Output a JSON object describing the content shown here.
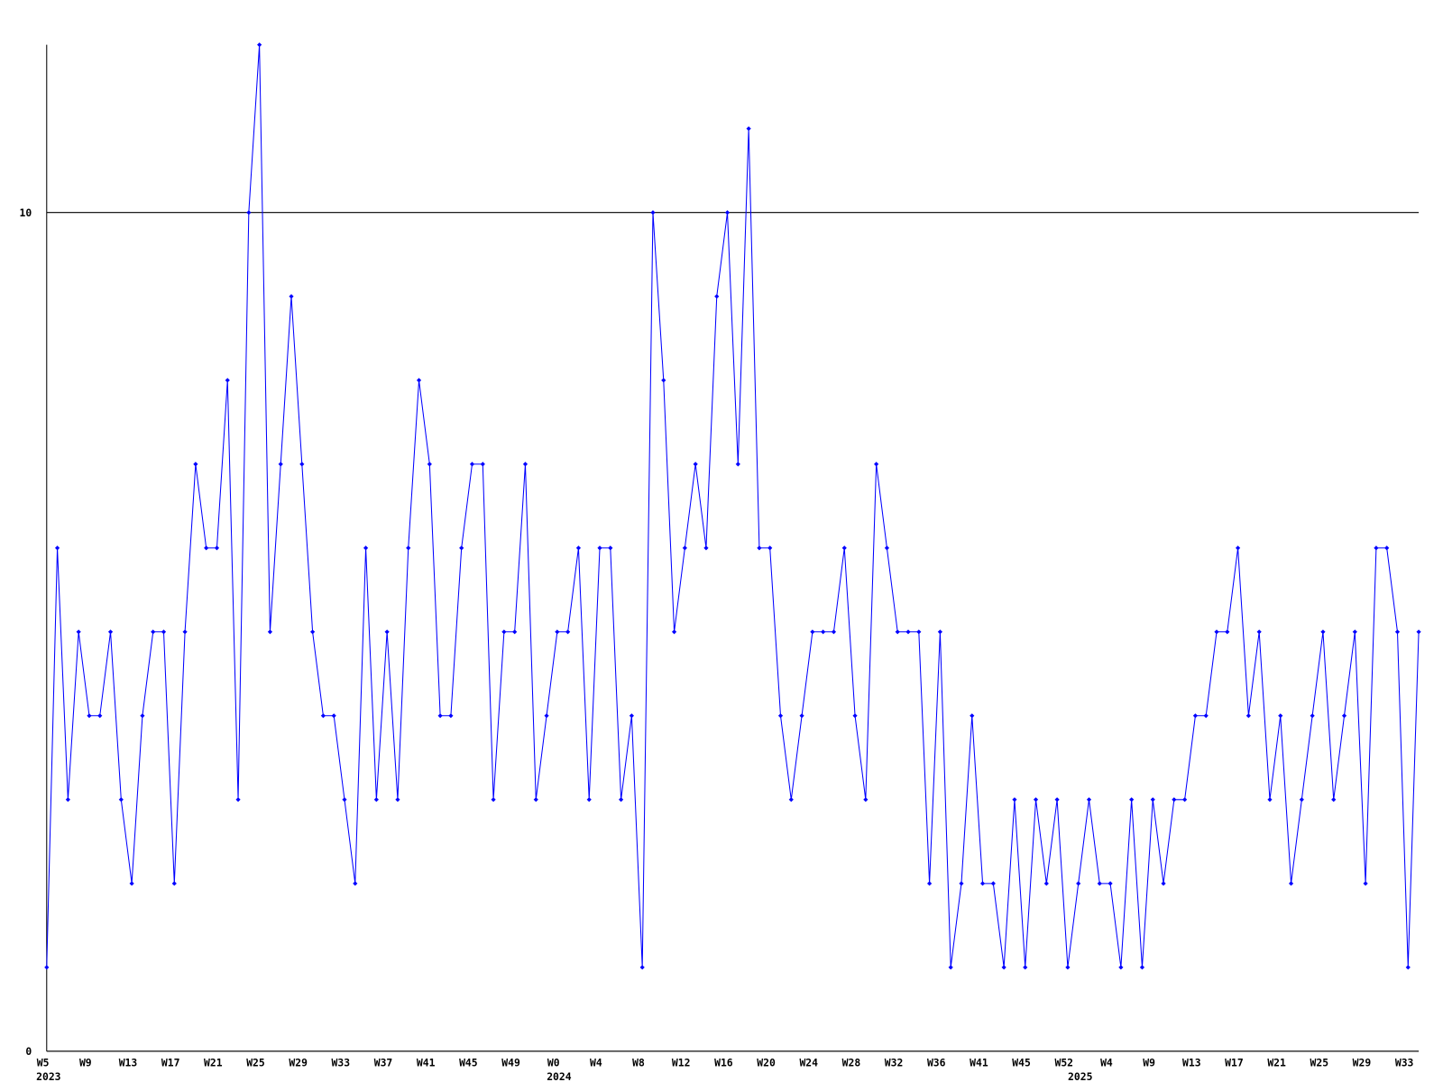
{
  "chart_data": {
    "type": "line",
    "categories": [
      "W5",
      null,
      null,
      null,
      "W9",
      null,
      null,
      null,
      "W13",
      null,
      null,
      null,
      "W17",
      null,
      null,
      null,
      "W21",
      null,
      null,
      null,
      "W25",
      null,
      null,
      null,
      "W29",
      null,
      null,
      null,
      "W33",
      null,
      null,
      null,
      "W37",
      null,
      null,
      null,
      "W41",
      null,
      null,
      null,
      "W45",
      null,
      null,
      null,
      "W49",
      null,
      null,
      null,
      "W0",
      null,
      null,
      null,
      "W4",
      null,
      null,
      null,
      "W8",
      null,
      null,
      null,
      "W12",
      null,
      null,
      null,
      "W16",
      null,
      null,
      null,
      "W20",
      null,
      null,
      null,
      "W24",
      null,
      null,
      null,
      "W28",
      null,
      null,
      null,
      "W32",
      null,
      null,
      null,
      "W36",
      null,
      null,
      null,
      "W41",
      null,
      null,
      null,
      "W45",
      null,
      null,
      null,
      "W52",
      null,
      null,
      null,
      "W4",
      null,
      null,
      null,
      "W9",
      null,
      null,
      null,
      "W13",
      null,
      null,
      null,
      "W17",
      null,
      null,
      null,
      "W21",
      null,
      null,
      null,
      "W25",
      null,
      null,
      null,
      "W29",
      null,
      null,
      null,
      "W33",
      null
    ],
    "years": [
      "2023",
      null,
      null,
      null,
      null,
      null,
      null,
      null,
      null,
      null,
      null,
      null,
      null,
      null,
      null,
      null,
      null,
      null,
      null,
      null,
      null,
      null,
      null,
      null,
      null,
      null,
      null,
      null,
      null,
      null,
      null,
      null,
      null,
      null,
      null,
      null,
      null,
      null,
      null,
      null,
      null,
      null,
      null,
      null,
      null,
      null,
      null,
      null,
      "2024",
      null,
      null,
      null,
      null,
      null,
      null,
      null,
      null,
      null,
      null,
      null,
      null,
      null,
      null,
      null,
      null,
      null,
      null,
      null,
      null,
      null,
      null,
      null,
      null,
      null,
      null,
      null,
      null,
      null,
      null,
      null,
      null,
      null,
      null,
      null,
      null,
      null,
      null,
      null,
      null,
      null,
      null,
      null,
      null,
      null,
      null,
      null,
      null,
      "2025",
      null,
      null,
      null,
      null,
      null,
      null,
      null,
      null,
      null,
      null,
      null,
      null,
      null,
      null,
      null,
      null,
      null,
      null,
      null,
      null,
      null,
      null,
      null,
      null,
      null,
      null,
      null,
      null,
      null,
      null,
      null,
      null,
      null
    ],
    "series": [
      {
        "color": "#0000ff",
        "values": [
          1,
          6,
          3,
          5,
          4,
          4,
          5,
          3,
          2,
          4,
          5,
          5,
          2,
          5,
          7,
          6,
          6,
          8,
          3,
          10,
          12,
          5,
          7,
          9,
          7,
          5,
          4,
          4,
          3,
          2,
          6,
          3,
          5,
          3,
          6,
          8,
          7,
          4,
          4,
          6,
          7,
          7,
          3,
          5,
          5,
          7,
          3,
          4,
          5,
          5,
          6,
          3,
          6,
          6,
          3,
          4,
          1,
          10,
          8,
          5,
          6,
          7,
          6,
          9,
          10,
          7,
          11,
          6,
          6,
          4,
          3,
          4,
          5,
          5,
          5,
          6,
          4,
          3,
          7,
          6,
          5,
          5,
          5,
          2,
          5,
          1,
          2,
          4,
          2,
          2,
          1,
          3,
          1,
          3,
          2,
          3,
          1,
          2,
          3,
          2,
          2,
          1,
          3,
          1,
          3,
          2,
          3,
          3,
          4,
          4,
          5,
          5,
          6,
          4,
          5,
          3,
          4,
          2,
          3,
          4,
          5,
          3,
          4,
          5,
          2,
          6,
          6,
          5,
          1,
          5
        ]
      }
    ],
    "ylim": [
      0,
      12
    ],
    "yticks": [
      0,
      10
    ],
    "grid": true
  }
}
